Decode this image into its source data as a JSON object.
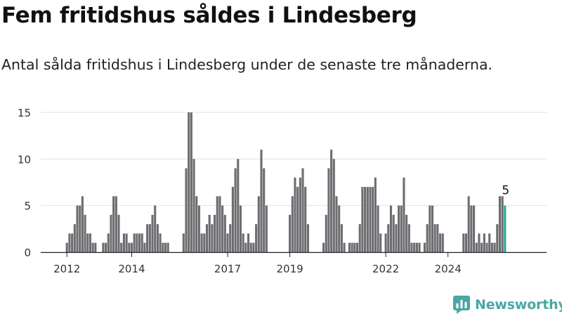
{
  "chart_data": {
    "type": "bar",
    "title": "Fem fritidshus såldes i Lindesberg",
    "subtitle": "Antal sålda fritidshus i Lindesberg under de senaste tre månaderna.",
    "xlabel": "",
    "ylabel": "",
    "ylim": [
      0,
      15
    ],
    "yticks": [
      0,
      5,
      10,
      15
    ],
    "grid": true,
    "x_ticks": [
      {
        "label": "2012",
        "index": 1
      },
      {
        "label": "2014",
        "index": 26
      },
      {
        "label": "2017",
        "index": 63
      },
      {
        "label": "2019",
        "index": 87
      },
      {
        "label": "2022",
        "index": 124
      },
      {
        "label": "2024",
        "index": 148
      }
    ],
    "values": [
      0,
      1,
      2,
      2,
      3,
      5,
      5,
      6,
      4,
      2,
      2,
      1,
      1,
      0,
      0,
      1,
      1,
      2,
      4,
      6,
      6,
      4,
      1,
      2,
      2,
      1,
      1,
      2,
      2,
      2,
      2,
      1,
      3,
      3,
      4,
      5,
      3,
      2,
      1,
      1,
      1,
      0,
      0,
      0,
      0,
      0,
      2,
      9,
      15,
      15,
      10,
      6,
      5,
      2,
      2,
      3,
      4,
      3,
      4,
      6,
      6,
      5,
      4,
      2,
      3,
      7,
      9,
      10,
      5,
      2,
      1,
      2,
      1,
      1,
      3,
      6,
      11,
      9,
      5,
      0,
      0,
      0,
      0,
      0,
      0,
      0,
      0,
      4,
      6,
      8,
      7,
      8,
      9,
      7,
      3,
      0,
      0,
      0,
      0,
      0,
      1,
      4,
      9,
      11,
      10,
      6,
      5,
      3,
      1,
      0,
      1,
      1,
      1,
      1,
      3,
      7,
      7,
      7,
      7,
      7,
      8,
      5,
      2,
      0,
      2,
      3,
      5,
      4,
      3,
      5,
      5,
      8,
      4,
      3,
      1,
      1,
      1,
      1,
      0,
      1,
      3,
      5,
      5,
      3,
      3,
      2,
      2,
      0,
      0,
      0,
      0,
      0,
      0,
      0,
      2,
      2,
      6,
      5,
      5,
      1,
      2,
      1,
      2,
      1,
      2,
      1,
      1,
      3,
      6,
      6,
      5
    ],
    "highlight_index": 170,
    "highlight_label": "5",
    "colors": {
      "bar": "#6d6c70",
      "highlight": "#2aa79b",
      "grid": "#e2e2e2",
      "axis": "#222222"
    }
  },
  "brand": {
    "name": "Newsworthy",
    "color": "#4aa7a4",
    "icon": "newsworthy-chart-icon"
  }
}
